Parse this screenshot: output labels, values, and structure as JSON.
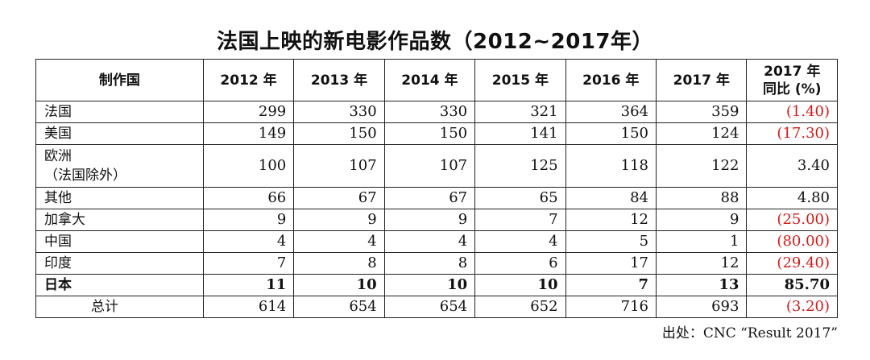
{
  "chart_data": {
    "type": "table",
    "title": "法国上映的新电影作品数（2012~2017年）",
    "columns": [
      "制作国",
      "2012 年",
      "2013 年",
      "2014 年",
      "2015 年",
      "2016 年",
      "2017 年",
      "2017 年\n同比 (%)"
    ],
    "rows": [
      {
        "country": "法国",
        "values": [
          "299",
          "330",
          "330",
          "321",
          "364",
          "359"
        ],
        "yoy": "(1.40)",
        "negative": true,
        "bold": false
      },
      {
        "country": "美国",
        "values": [
          "149",
          "150",
          "150",
          "141",
          "150",
          "124"
        ],
        "yoy": "(17.30)",
        "negative": true,
        "bold": false
      },
      {
        "country": "欧洲\n（法国除外）",
        "values": [
          "100",
          "107",
          "107",
          "125",
          "118",
          "122"
        ],
        "yoy": "3.40",
        "negative": false,
        "bold": false
      },
      {
        "country": "其他",
        "values": [
          "66",
          "67",
          "67",
          "65",
          "84",
          "88"
        ],
        "yoy": "4.80",
        "negative": false,
        "bold": false
      },
      {
        "country": "加拿大",
        "values": [
          "9",
          "9",
          "9",
          "7",
          "12",
          "9"
        ],
        "yoy": "(25.00)",
        "negative": true,
        "bold": false
      },
      {
        "country": "中国",
        "values": [
          "4",
          "4",
          "4",
          "4",
          "5",
          "1"
        ],
        "yoy": "(80.00)",
        "negative": true,
        "bold": false
      },
      {
        "country": "印度",
        "values": [
          "7",
          "8",
          "8",
          "6",
          "17",
          "12"
        ],
        "yoy": "(29.40)",
        "negative": true,
        "bold": false
      },
      {
        "country": "日本",
        "values": [
          "11",
          "10",
          "10",
          "10",
          "7",
          "13"
        ],
        "yoy": "85.70",
        "negative": false,
        "bold": true
      },
      {
        "country": "总计",
        "values": [
          "614",
          "654",
          "654",
          "652",
          "716",
          "693"
        ],
        "yoy": "(3.20)",
        "negative": true,
        "bold": false,
        "total": true
      }
    ],
    "source": "出处：CNC “Result 2017”",
    "colors": {
      "negative": "#d21a1a",
      "text": "#111111",
      "border": "#222222"
    }
  }
}
